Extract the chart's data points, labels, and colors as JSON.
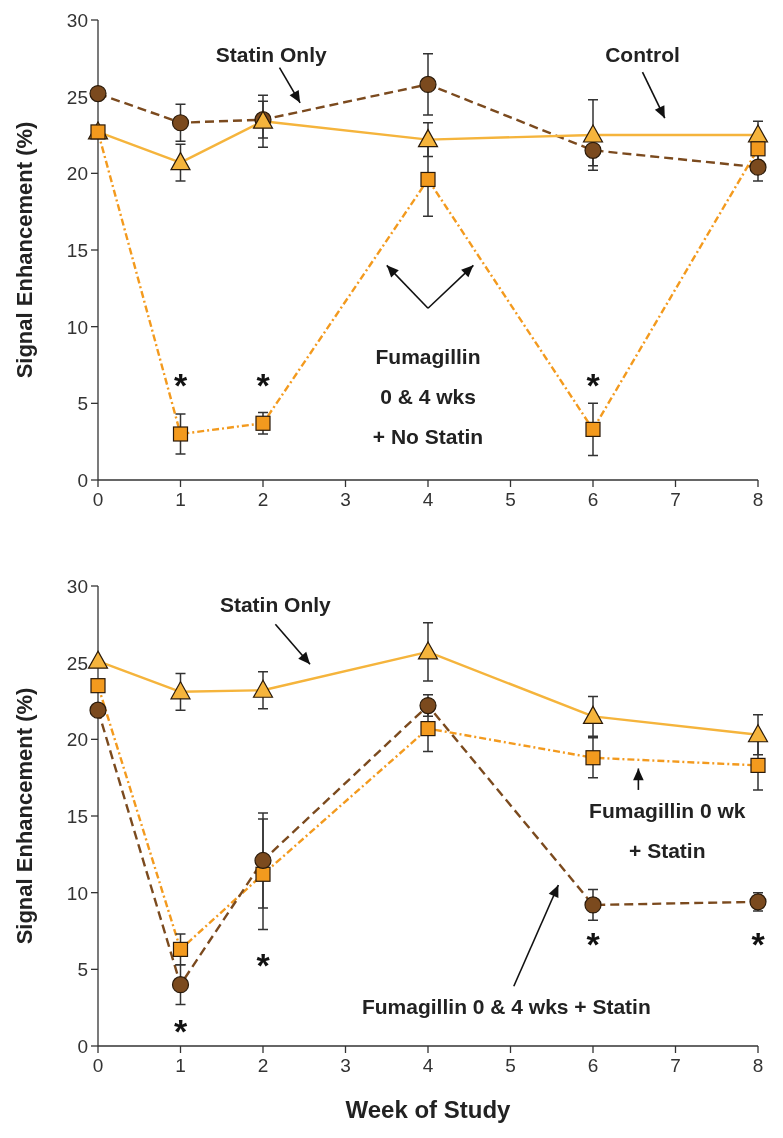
{
  "chart_data": [
    {
      "type": "line",
      "ylabel": "Signal Enhancement (%)",
      "x": [
        0,
        1,
        2,
        4,
        6,
        8
      ],
      "xlim": [
        0,
        8
      ],
      "xticks": [
        0,
        1,
        2,
        3,
        4,
        5,
        6,
        7,
        8
      ],
      "ylim": [
        0,
        30
      ],
      "yticks": [
        0,
        5,
        10,
        15,
        20,
        25,
        30
      ],
      "grid": false,
      "legend": false,
      "series": [
        {
          "name": "Statin Only",
          "color": "#7b4a1e",
          "marker": "circle",
          "line_style": "dashed",
          "values": [
            25.2,
            23.3,
            23.5,
            25.8,
            21.5,
            20.4
          ],
          "errors": [
            null,
            1.2,
            1.2,
            2.0,
            1.0,
            0.9
          ]
        },
        {
          "name": "Control",
          "color": "#f5b43c",
          "marker": "triangle",
          "line_style": "solid",
          "values": [
            22.7,
            20.7,
            23.4,
            22.2,
            22.5,
            22.5
          ],
          "errors": [
            null,
            1.2,
            1.7,
            1.1,
            2.3,
            0.9
          ]
        },
        {
          "name": "Fumagillin\n0 & 4 wks\n+ No Statin",
          "color": "#f39a1e",
          "marker": "square",
          "line_style": "dashdot",
          "values": [
            22.7,
            3.0,
            3.7,
            19.6,
            3.3,
            21.6
          ],
          "errors": [
            null,
            1.3,
            0.7,
            2.4,
            1.7,
            0.8
          ]
        }
      ],
      "annotations": [
        "*",
        "*",
        "*"
      ]
    },
    {
      "type": "line",
      "xlabel": "Week of Study",
      "ylabel": "Signal Enhancement (%)",
      "x": [
        0,
        1,
        2,
        4,
        6,
        8
      ],
      "xlim": [
        0,
        8
      ],
      "xticks": [
        0,
        1,
        2,
        3,
        4,
        5,
        6,
        7,
        8
      ],
      "ylim": [
        0,
        30
      ],
      "yticks": [
        0,
        5,
        10,
        15,
        20,
        25,
        30
      ],
      "grid": false,
      "legend": false,
      "series": [
        {
          "name": "Statin Only",
          "color": "#f5b43c",
          "marker": "triangle",
          "line_style": "solid",
          "values": [
            25.1,
            23.1,
            23.2,
            25.7,
            21.5,
            20.3
          ],
          "errors": [
            null,
            1.2,
            1.2,
            1.9,
            1.3,
            1.3
          ]
        },
        {
          "name": "Fumagillin 0 wk\n+ Statin",
          "color": "#f39a1e",
          "marker": "square",
          "line_style": "dashdot",
          "values": [
            23.5,
            6.3,
            11.2,
            20.7,
            18.8,
            18.3
          ],
          "errors": [
            null,
            1.0,
            3.6,
            1.5,
            1.3,
            1.6
          ]
        },
        {
          "name": "Fumagillin 0 & 4 wks + Statin",
          "color": "#7b4a1e",
          "marker": "circle",
          "line_style": "dashed",
          "values": [
            21.9,
            4.0,
            12.1,
            22.2,
            9.2,
            9.4
          ],
          "errors": [
            null,
            1.3,
            3.1,
            0.7,
            1.0,
            0.6
          ]
        }
      ],
      "annotations": [
        "*",
        "*",
        "*",
        "*"
      ]
    }
  ]
}
